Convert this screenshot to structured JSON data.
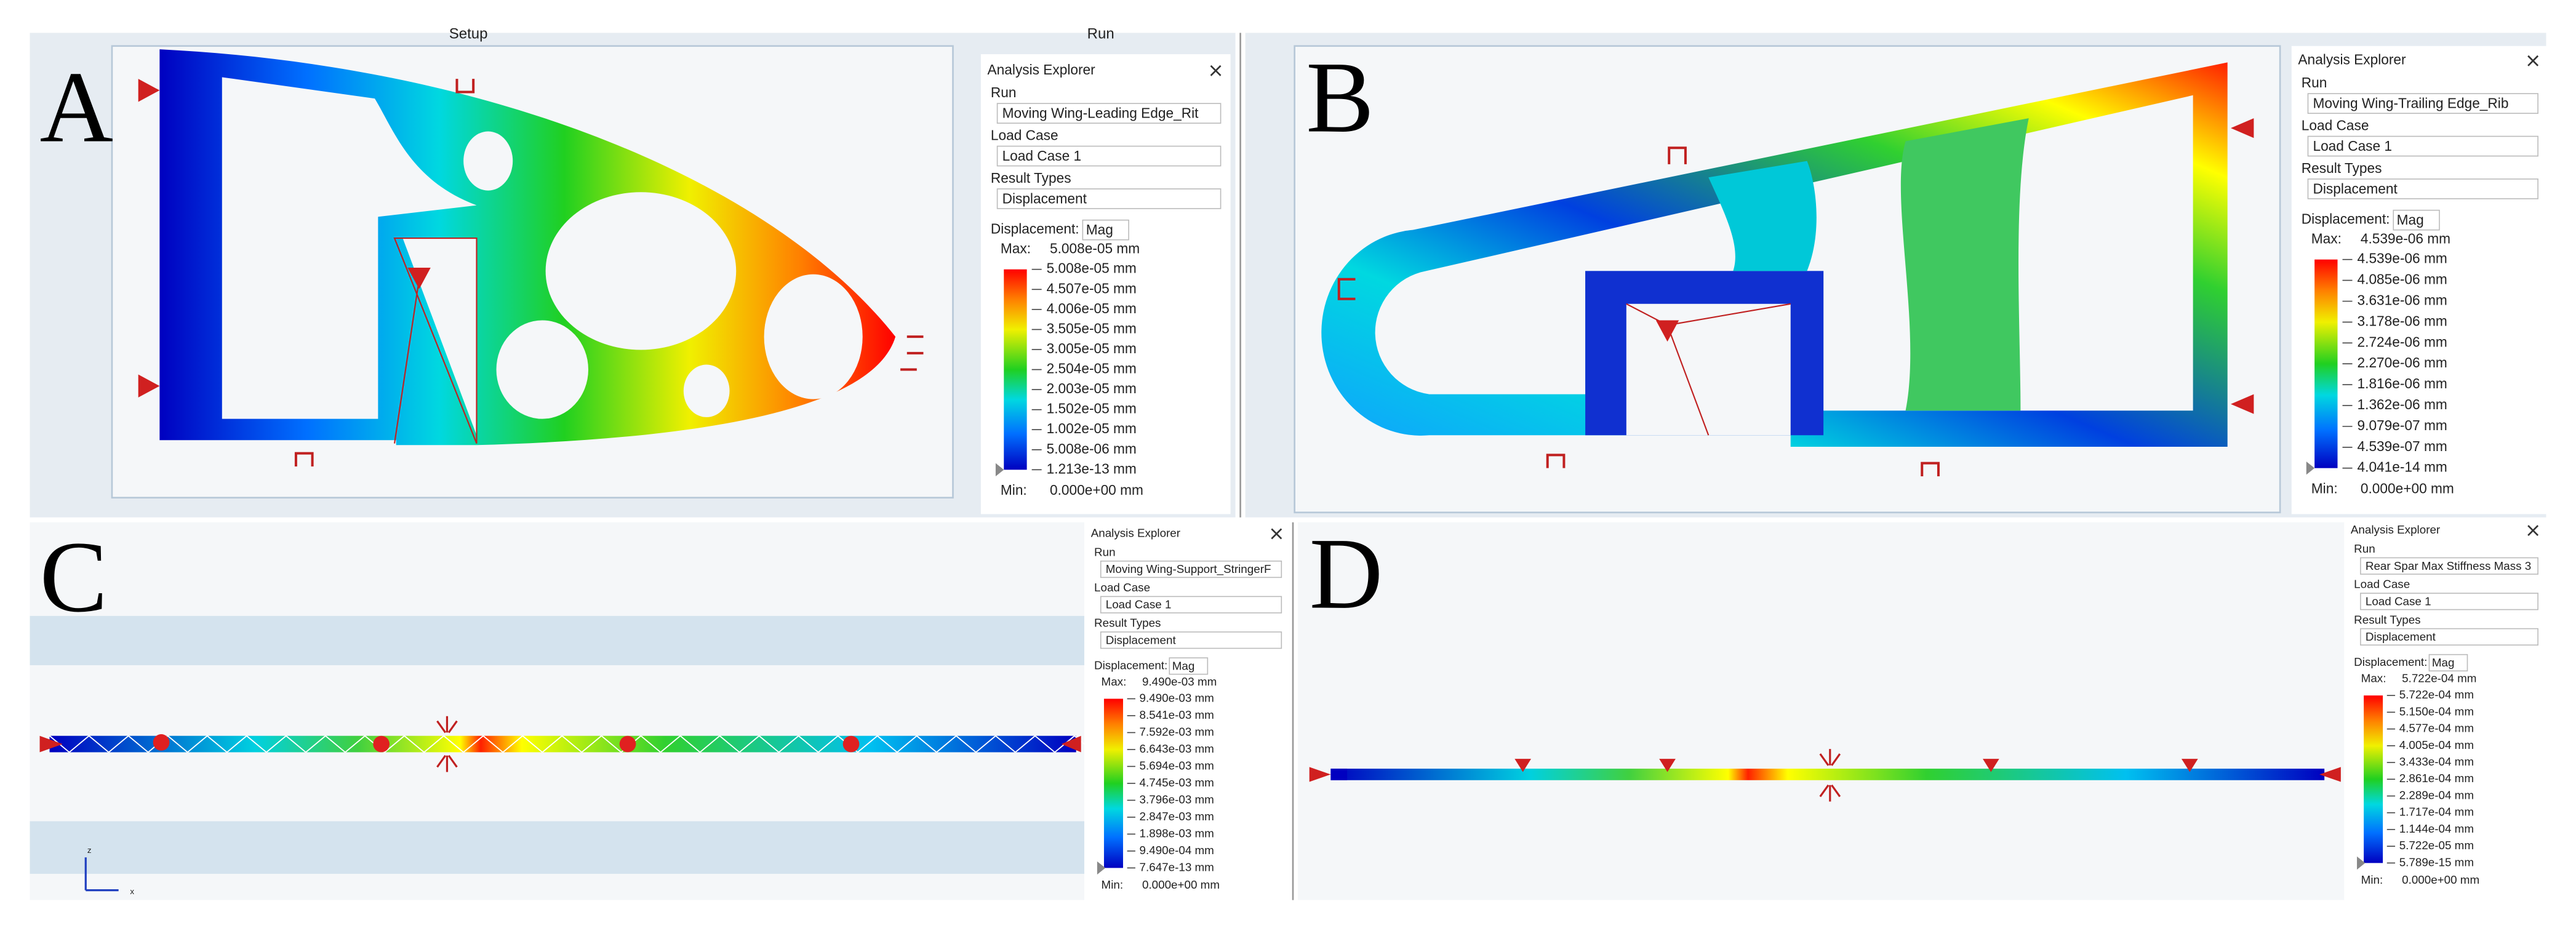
{
  "panels": [
    {
      "label": "A",
      "tabs": [
        "Setup",
        "Run"
      ],
      "explorer": {
        "title": "Analysis Explorer",
        "run_label": "Run",
        "run": "Moving Wing-Leading Edge_Rit",
        "load_case_label": "Load Case",
        "load_case": "Load Case 1",
        "result_types_label": "Result Types",
        "result_type": "Displacement",
        "displacement_label": "Displacement:",
        "component": "Mag",
        "max_label": "Max:",
        "max": "5.008e-05 mm",
        "legend": [
          "5.008e-05 mm",
          "4.507e-05 mm",
          "4.006e-05 mm",
          "3.505e-05 mm",
          "3.005e-05 mm",
          "2.504e-05 mm",
          "2.003e-05 mm",
          "1.502e-05 mm",
          "1.002e-05 mm",
          "5.008e-06 mm",
          "1.213e-13 mm"
        ],
        "min_label": "Min:",
        "min": "0.000e+00 mm"
      }
    },
    {
      "label": "B",
      "explorer": {
        "title": "Analysis Explorer",
        "run_label": "Run",
        "run": "Moving Wing-Trailing Edge_Rib",
        "load_case_label": "Load Case",
        "load_case": "Load Case 1",
        "result_types_label": "Result Types",
        "result_type": "Displacement",
        "displacement_label": "Displacement:",
        "component": "Mag",
        "max_label": "Max:",
        "max": "4.539e-06 mm",
        "legend": [
          "4.539e-06 mm",
          "4.085e-06 mm",
          "3.631e-06 mm",
          "3.178e-06 mm",
          "2.724e-06 mm",
          "2.270e-06 mm",
          "1.816e-06 mm",
          "1.362e-06 mm",
          "9.079e-07 mm",
          "4.539e-07 mm",
          "4.041e-14 mm"
        ],
        "min_label": "Min:",
        "min": "0.000e+00 mm"
      }
    },
    {
      "label": "C",
      "axis_labels": [
        "z",
        "x"
      ],
      "explorer": {
        "title": "Analysis Explorer",
        "run_label": "Run",
        "run": "Moving Wing-Support_StringerF",
        "load_case_label": "Load Case",
        "load_case": "Load Case 1",
        "result_types_label": "Result Types",
        "result_type": "Displacement",
        "displacement_label": "Displacement:",
        "component": "Mag",
        "max_label": "Max:",
        "max": "9.490e-03 mm",
        "legend": [
          "9.490e-03 mm",
          "8.541e-03 mm",
          "7.592e-03 mm",
          "6.643e-03 mm",
          "5.694e-03 mm",
          "4.745e-03 mm",
          "3.796e-03 mm",
          "2.847e-03 mm",
          "1.898e-03 mm",
          "9.490e-04 mm",
          "7.647e-13 mm"
        ],
        "min_label": "Min:",
        "min": "0.000e+00 mm"
      }
    },
    {
      "label": "D",
      "explorer": {
        "title": "Analysis Explorer",
        "run_label": "Run",
        "run": "Rear Spar Max Stiffness Mass 3",
        "load_case_label": "Load Case",
        "load_case": "Load Case 1",
        "result_types_label": "Result Types",
        "result_type": "Displacement",
        "displacement_label": "Displacement:",
        "component": "Mag",
        "max_label": "Max:",
        "max": "5.722e-04 mm",
        "legend": [
          "5.722e-04 mm",
          "5.150e-04 mm",
          "4.577e-04 mm",
          "4.005e-04 mm",
          "3.433e-04 mm",
          "2.861e-04 mm",
          "2.289e-04 mm",
          "1.717e-04 mm",
          "1.144e-04 mm",
          "5.722e-05 mm",
          "5.789e-15 mm"
        ],
        "min_label": "Min:",
        "min": "0.000e+00 mm"
      }
    }
  ]
}
